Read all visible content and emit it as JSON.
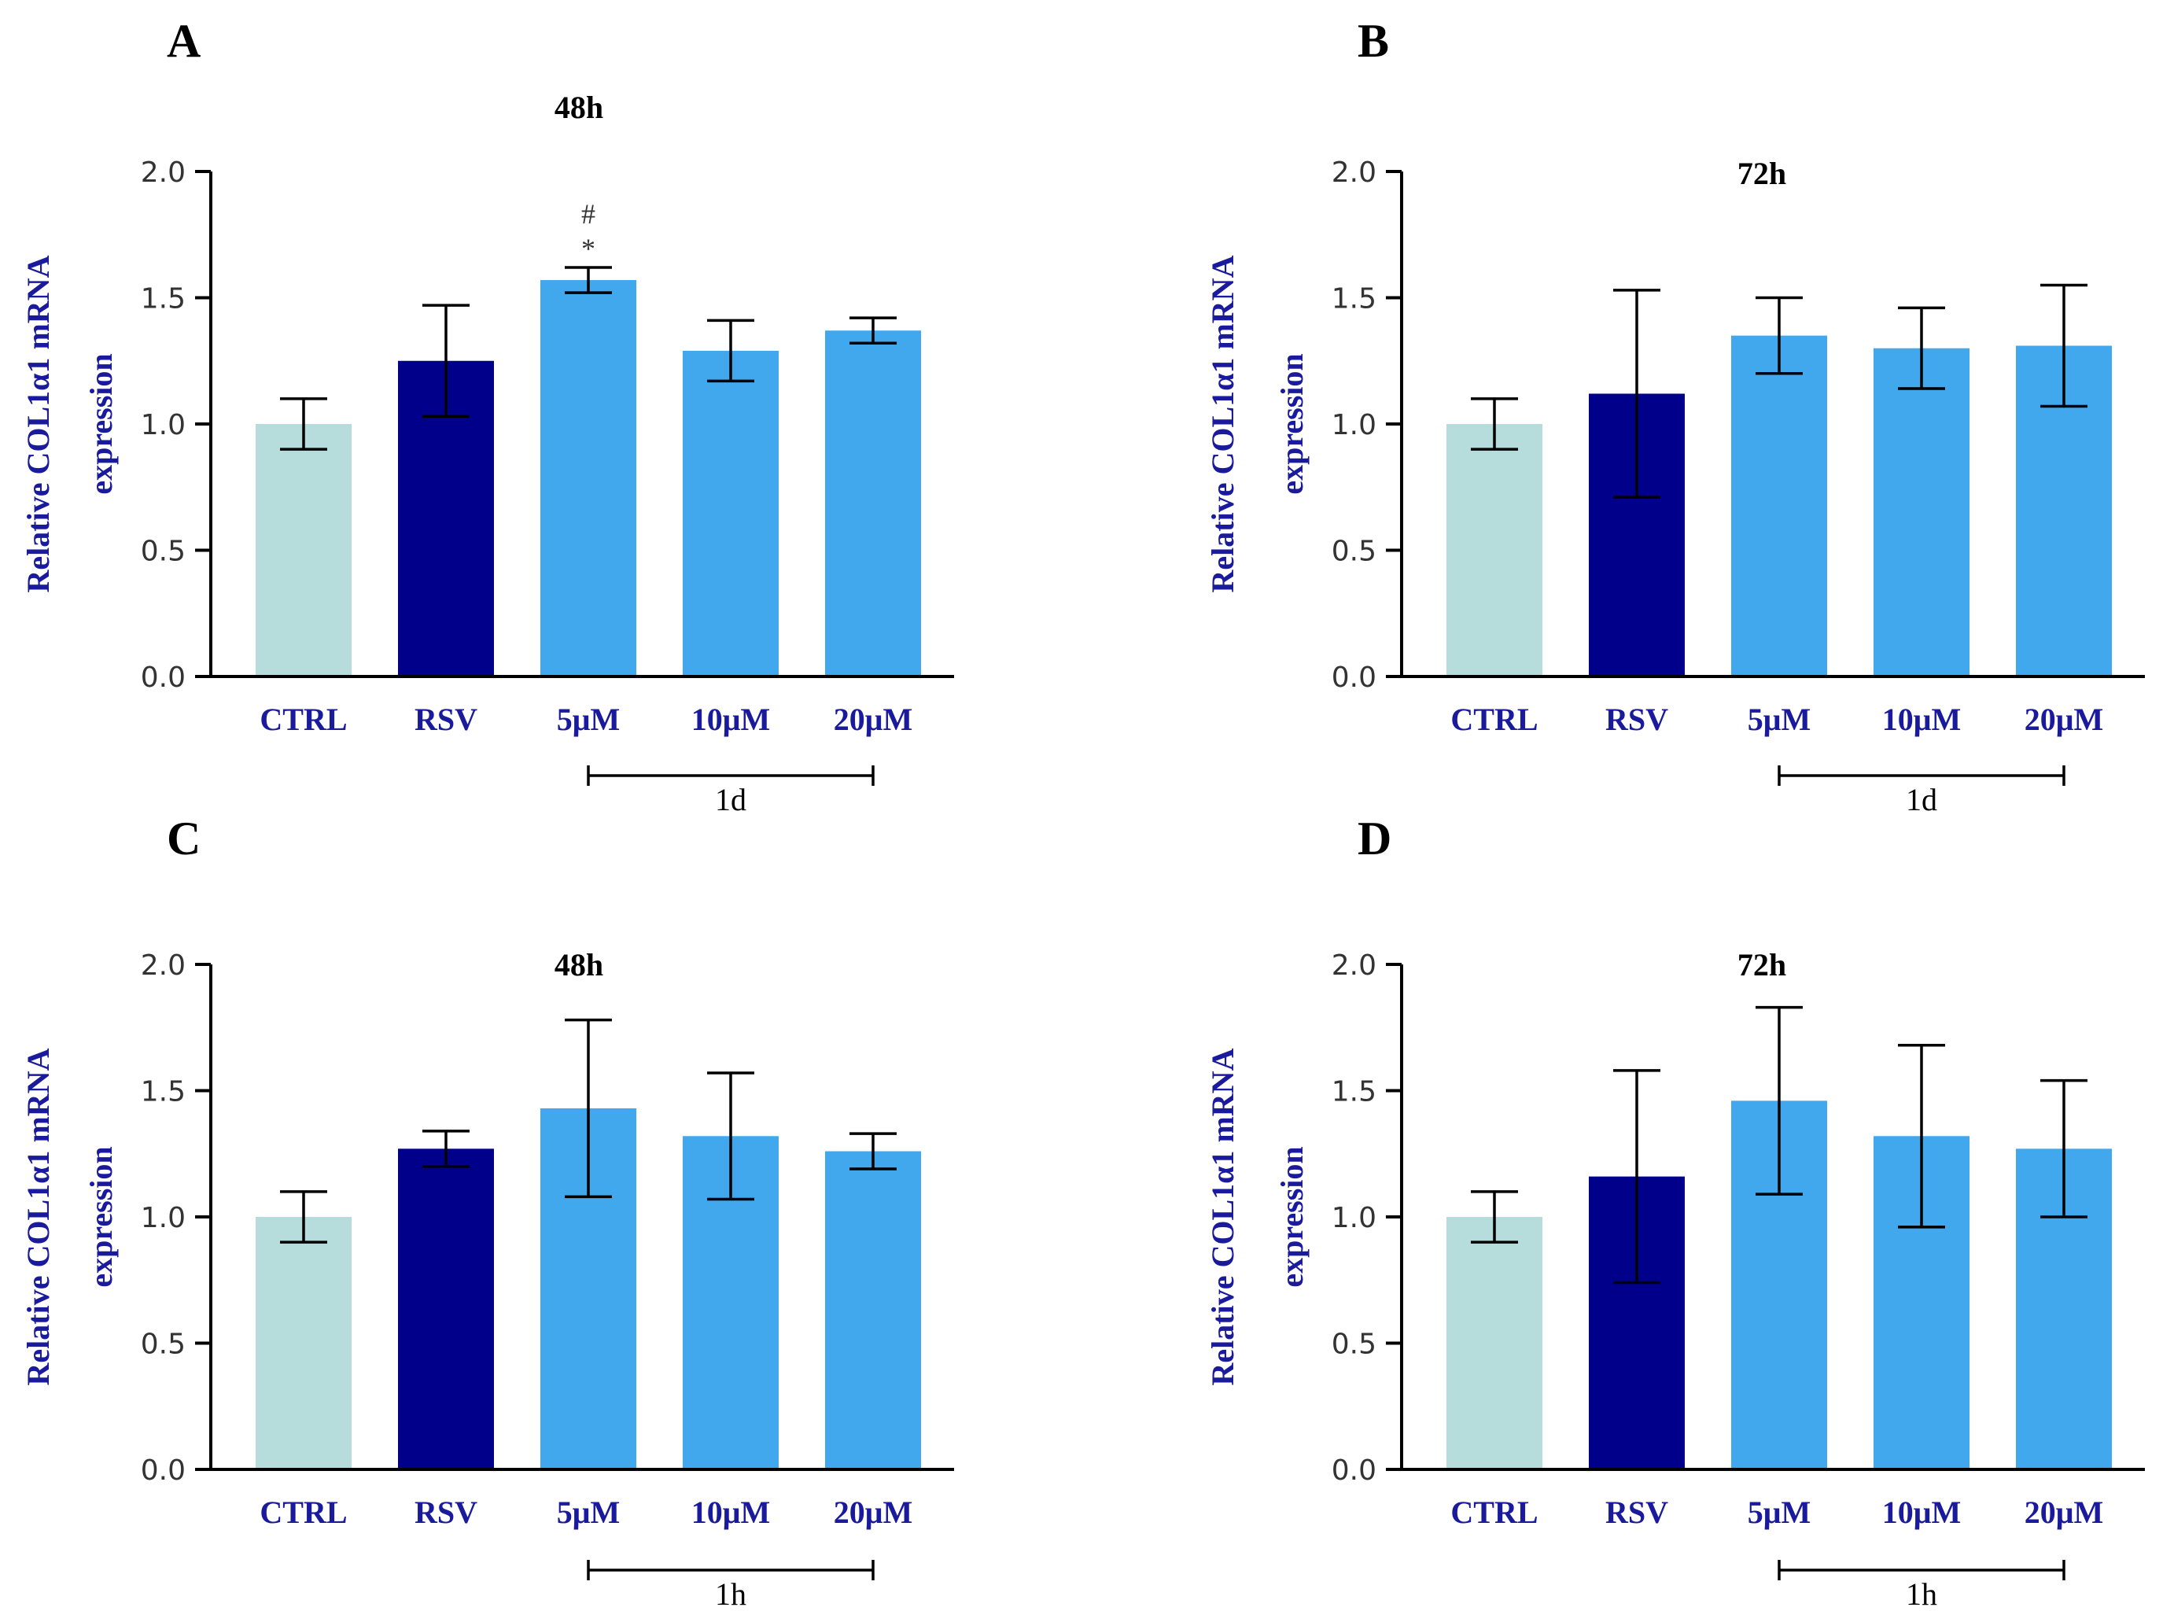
{
  "colors": {
    "axis": "#000000",
    "label_blue": "#1a1a9c",
    "bar_ctrl": "#b7dcdc",
    "bar_rsv": "#00008b",
    "bar_treat": "#42a8ee"
  },
  "chart_data": [
    {
      "id": "A",
      "panel_letter": "A",
      "type": "bar",
      "title": "48h",
      "ylabel_line1": "Relative COL1α1 mRNA",
      "ylabel_line2": "expression",
      "ylim": [
        0,
        2.0
      ],
      "yticks": [
        "0.0",
        "0.5",
        "1.0",
        "1.5",
        "2.0"
      ],
      "categories": [
        "CTRL",
        "RSV",
        "5μM",
        "10μM",
        "20μM"
      ],
      "values": [
        1.0,
        1.25,
        1.57,
        1.29,
        1.37
      ],
      "error_low": [
        0.9,
        1.03,
        1.52,
        1.17,
        1.32
      ],
      "error_high": [
        1.1,
        1.47,
        1.62,
        1.41,
        1.42
      ],
      "bracket_label": "1d",
      "annotations": [
        {
          "category_index": 2,
          "text": "*"
        },
        {
          "category_index": 2,
          "text": "#"
        }
      ]
    },
    {
      "id": "B",
      "panel_letter": "B",
      "type": "bar",
      "title": "72h",
      "ylabel_line1": "Relative COL1α1 mRNA",
      "ylabel_line2": "expression",
      "ylim": [
        0,
        2.0
      ],
      "yticks": [
        "0.0",
        "0.5",
        "1.0",
        "1.5",
        "2.0"
      ],
      "categories": [
        "CTRL",
        "RSV",
        "5μM",
        "10μM",
        "20μM"
      ],
      "values": [
        1.0,
        1.12,
        1.35,
        1.3,
        1.31
      ],
      "error_low": [
        0.9,
        0.71,
        1.2,
        1.14,
        1.07
      ],
      "error_high": [
        1.1,
        1.53,
        1.5,
        1.46,
        1.55
      ],
      "bracket_label": "1d",
      "annotations": []
    },
    {
      "id": "C",
      "panel_letter": "C",
      "type": "bar",
      "title": "48h",
      "ylabel_line1": "Relative COL1α1 mRNA",
      "ylabel_line2": "expression",
      "ylim": [
        0,
        2.0
      ],
      "yticks": [
        "0.0",
        "0.5",
        "1.0",
        "1.5",
        "2.0"
      ],
      "categories": [
        "CTRL",
        "RSV",
        "5μM",
        "10μM",
        "20μM"
      ],
      "values": [
        1.0,
        1.27,
        1.43,
        1.32,
        1.26
      ],
      "error_low": [
        0.9,
        1.2,
        1.08,
        1.07,
        1.19
      ],
      "error_high": [
        1.1,
        1.34,
        1.78,
        1.57,
        1.33
      ],
      "bracket_label": "1h",
      "annotations": []
    },
    {
      "id": "D",
      "panel_letter": "D",
      "type": "bar",
      "title": "72h",
      "ylabel_line1": "Relative COL1α1 mRNA",
      "ylabel_line2": "expression",
      "ylim": [
        0,
        2.0
      ],
      "yticks": [
        "0.0",
        "0.5",
        "1.0",
        "1.5",
        "2.0"
      ],
      "categories": [
        "CTRL",
        "RSV",
        "5μM",
        "10μM",
        "20μM"
      ],
      "values": [
        1.0,
        1.16,
        1.46,
        1.32,
        1.27
      ],
      "error_low": [
        0.9,
        0.74,
        1.09,
        0.96,
        1.0
      ],
      "error_high": [
        1.1,
        1.58,
        1.83,
        1.68,
        1.54
      ],
      "bracket_label": "1h",
      "annotations": []
    }
  ]
}
